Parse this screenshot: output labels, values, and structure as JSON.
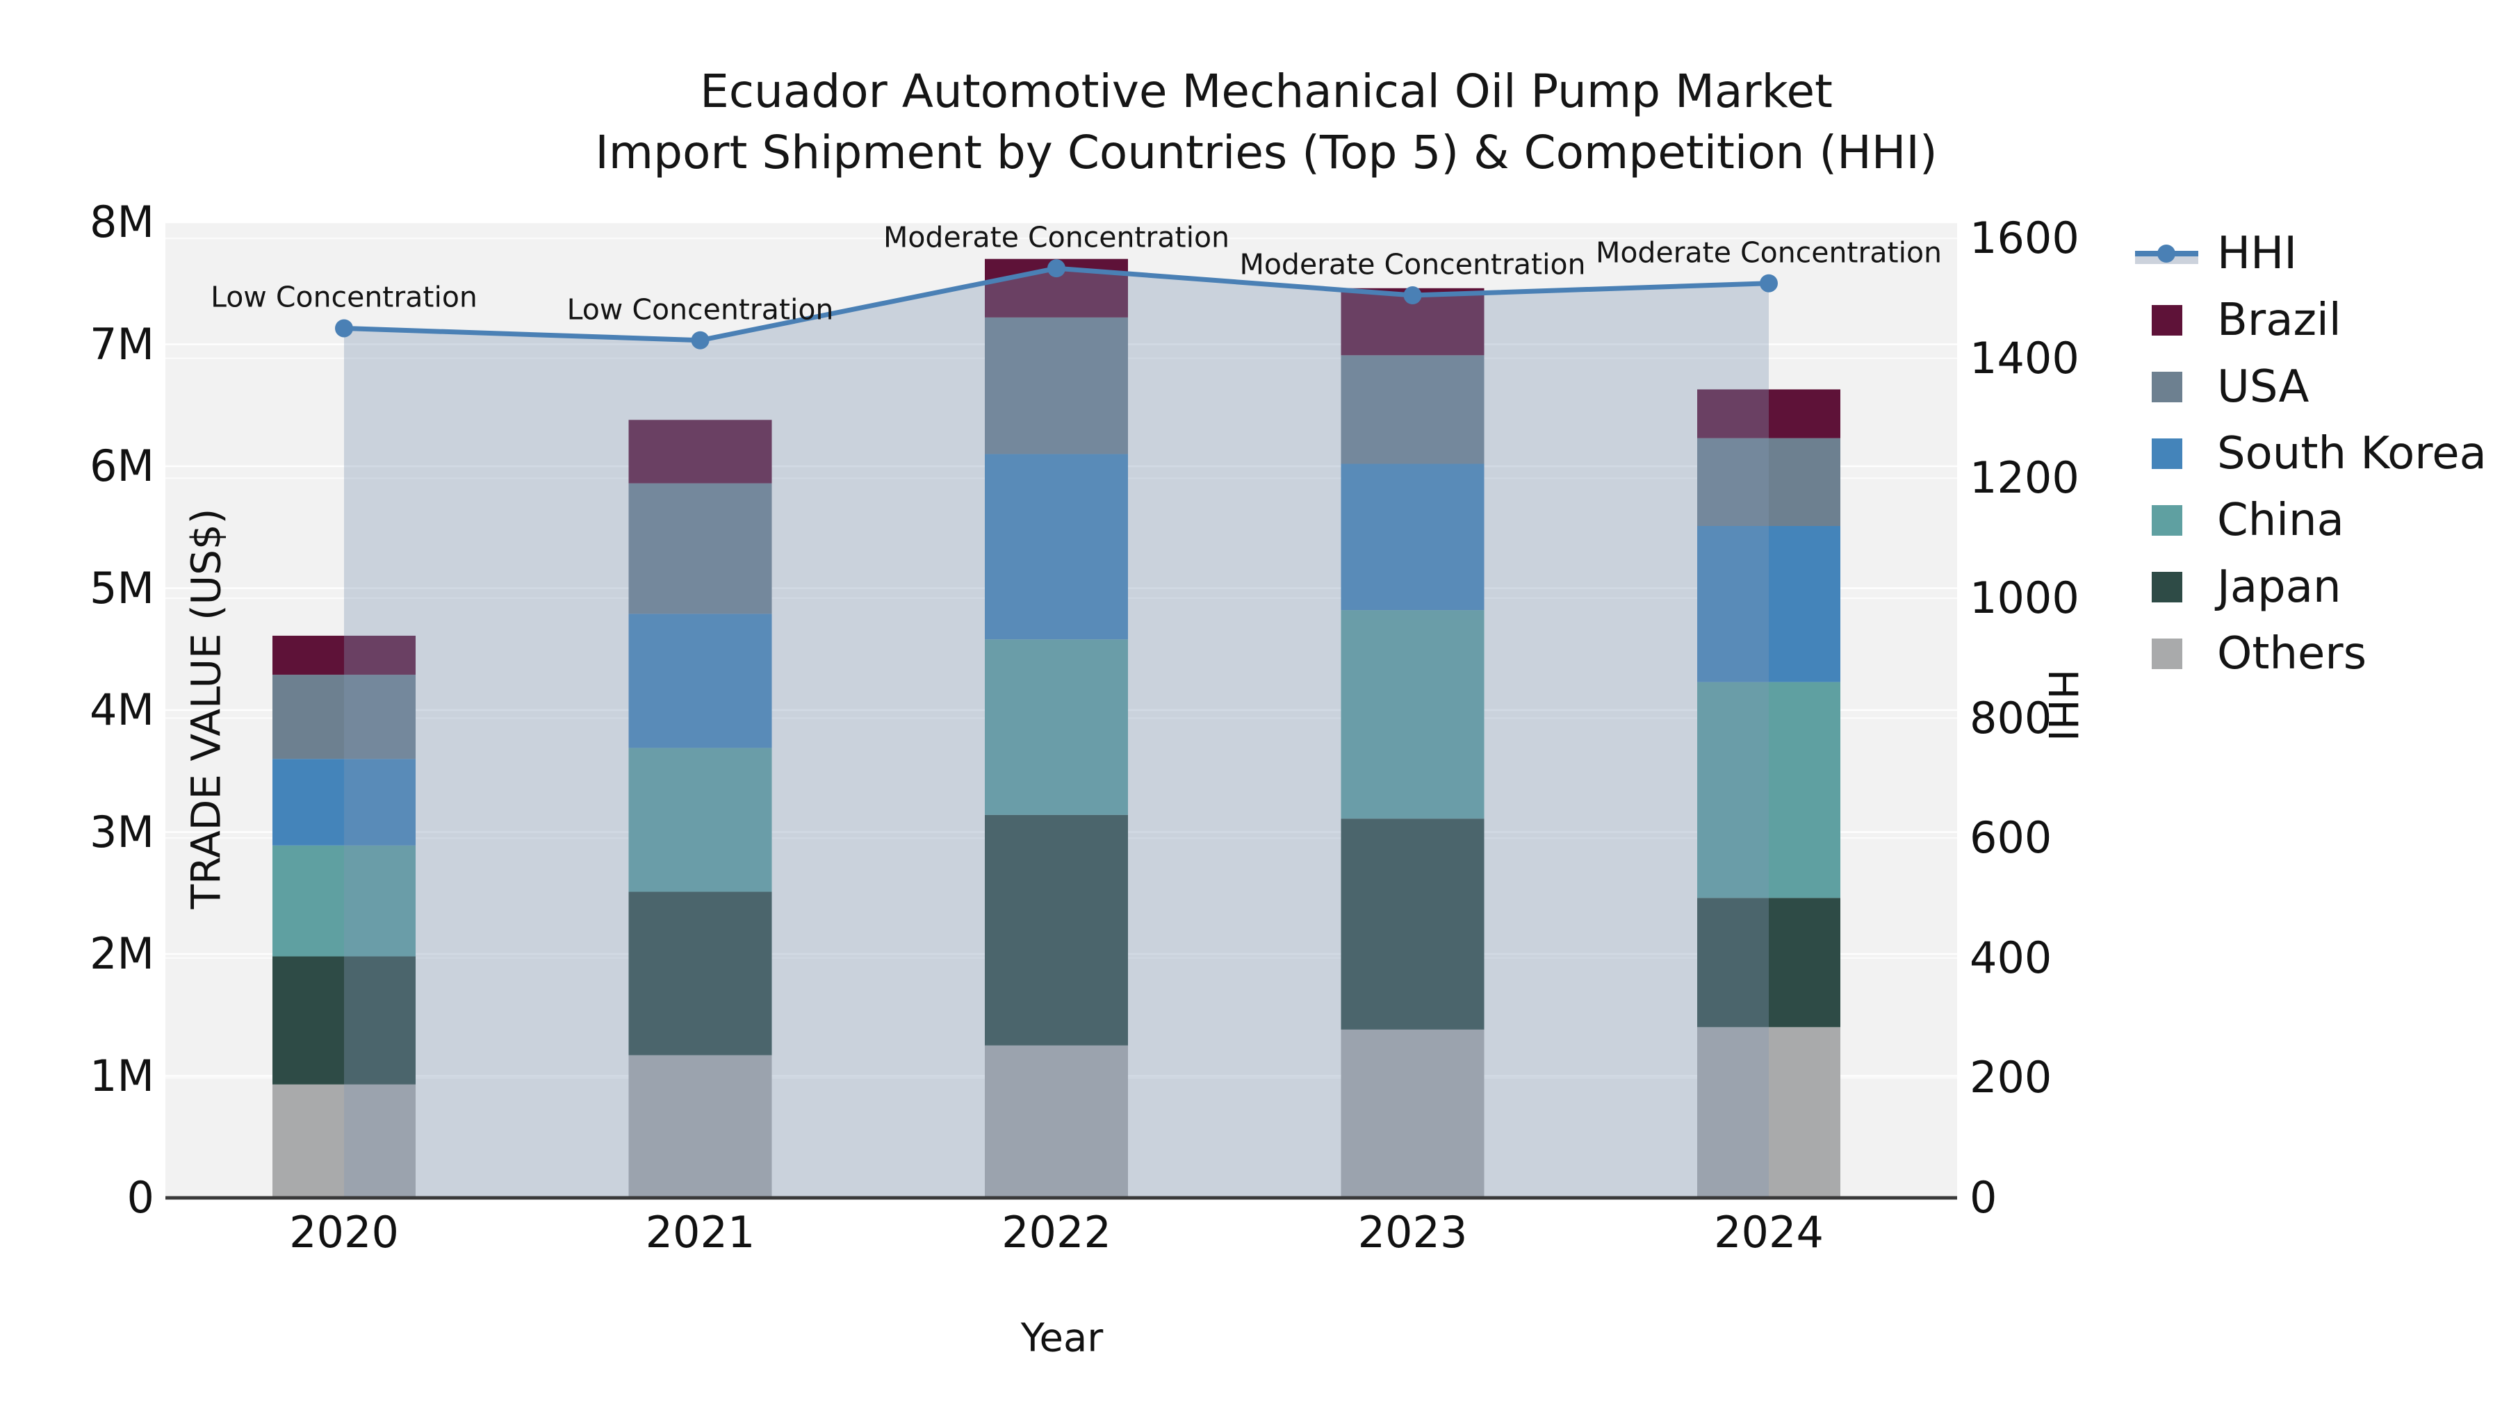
{
  "title": {
    "line1": "Ecuador Automotive Mechanical Oil Pump Market",
    "line2": "Import Shipment by Countries (Top 5) & Competition (HHI)"
  },
  "axes": {
    "x": {
      "label": "Year",
      "tick_labels": [
        "2020",
        "2021",
        "2022",
        "2023",
        "2024"
      ]
    },
    "y_left": {
      "label": "TRADE VALUE (US$)",
      "ticks": [
        {
          "label": "0",
          "value": 0
        },
        {
          "label": "1M",
          "value": 1
        },
        {
          "label": "2M",
          "value": 2
        },
        {
          "label": "3M",
          "value": 3
        },
        {
          "label": "4M",
          "value": 4
        },
        {
          "label": "5M",
          "value": 5
        },
        {
          "label": "6M",
          "value": 6
        },
        {
          "label": "7M",
          "value": 7
        },
        {
          "label": "8M",
          "value": 8
        }
      ]
    },
    "y_right": {
      "label": "HHI",
      "ticks": [
        {
          "label": "0",
          "value": 0
        },
        {
          "label": "200",
          "value": 200
        },
        {
          "label": "400",
          "value": 400
        },
        {
          "label": "600",
          "value": 600
        },
        {
          "label": "800",
          "value": 800
        },
        {
          "label": "1000",
          "value": 1000
        },
        {
          "label": "1200",
          "value": 1200
        },
        {
          "label": "1400",
          "value": 1400
        },
        {
          "label": "1600",
          "value": 1600
        }
      ]
    }
  },
  "legend": {
    "items": [
      {
        "label": "HHI",
        "type": "line",
        "color": "#4a80b5"
      },
      {
        "label": "Brazil",
        "type": "patch",
        "color": "#5e1238"
      },
      {
        "label": "USA",
        "type": "patch",
        "color": "#6d8090"
      },
      {
        "label": "South Korea",
        "type": "patch",
        "color": "#4484ba"
      },
      {
        "label": "China",
        "type": "patch",
        "color": "#5fa0a1"
      },
      {
        "label": "Japan",
        "type": "patch",
        "color": "#2e4b46"
      },
      {
        "label": "Others",
        "type": "patch",
        "color": "#a9aaab"
      }
    ]
  },
  "colors": {
    "figure_background": "#ffffff",
    "plot_background": "#f2f2f2",
    "grid_line": "#ffffff",
    "axis_spine": "#3a3a3a",
    "hhi_line": "#4a80b5",
    "hhi_marker": "#4a80b5",
    "hhi_fill": "rgba(128,152,180,0.35)",
    "hhi_legend_band": "#ccd2dc"
  },
  "chart_data": {
    "type": "bar",
    "subtype": "stacked-bars-with-hhi-line-overlay",
    "title": "Ecuador Automotive Mechanical Oil Pump Market — Import Shipment by Countries (Top 5) & Competition (HHI)",
    "xlabel": "Year",
    "ylabel": "TRADE VALUE (US$)",
    "y2label": "HHI",
    "ylim_musd": [
      0,
      8
    ],
    "y2lim": [
      0,
      1600
    ],
    "grid": "horizontal white gridlines for both left and right axis ticks",
    "legend_position": "right, outside plot",
    "categories": [
      "2020",
      "2021",
      "2022",
      "2023",
      "2024"
    ],
    "bar_series_bottom_to_top": [
      {
        "name": "Others",
        "color": "#a9aaab",
        "values_musd": [
          0.93,
          1.17,
          1.25,
          1.38,
          1.4
        ]
      },
      {
        "name": "Japan",
        "color": "#2e4b46",
        "values_musd": [
          1.05,
          1.34,
          1.89,
          1.73,
          1.06
        ]
      },
      {
        "name": "China",
        "color": "#5fa0a1",
        "values_musd": [
          0.91,
          1.18,
          1.44,
          1.71,
          1.77
        ]
      },
      {
        "name": "South Korea",
        "color": "#4484ba",
        "values_musd": [
          0.71,
          1.1,
          1.52,
          1.2,
          1.28
        ]
      },
      {
        "name": "USA",
        "color": "#6d8090",
        "values_musd": [
          0.69,
          1.07,
          1.12,
          0.89,
          0.72
        ]
      },
      {
        "name": "Brazil",
        "color": "#5e1238",
        "values_musd": [
          0.32,
          0.52,
          0.48,
          0.55,
          0.4
        ]
      }
    ],
    "bar_totals_musd": [
      4.61,
      6.38,
      7.7,
      7.46,
      6.63
    ],
    "line_series": {
      "name": "HHI",
      "axis": "y_right",
      "values": [
        1450,
        1430,
        1550,
        1505,
        1525
      ],
      "area_fill_from": "2020",
      "area_fill_to": "2024"
    },
    "annotations": [
      {
        "category": "2020",
        "text": "Low Concentration"
      },
      {
        "category": "2021",
        "text": "Low Concentration"
      },
      {
        "category": "2022",
        "text": "Moderate Concentration"
      },
      {
        "category": "2023",
        "text": "Moderate Concentration"
      },
      {
        "category": "2024",
        "text": "Moderate Concentration"
      }
    ]
  }
}
